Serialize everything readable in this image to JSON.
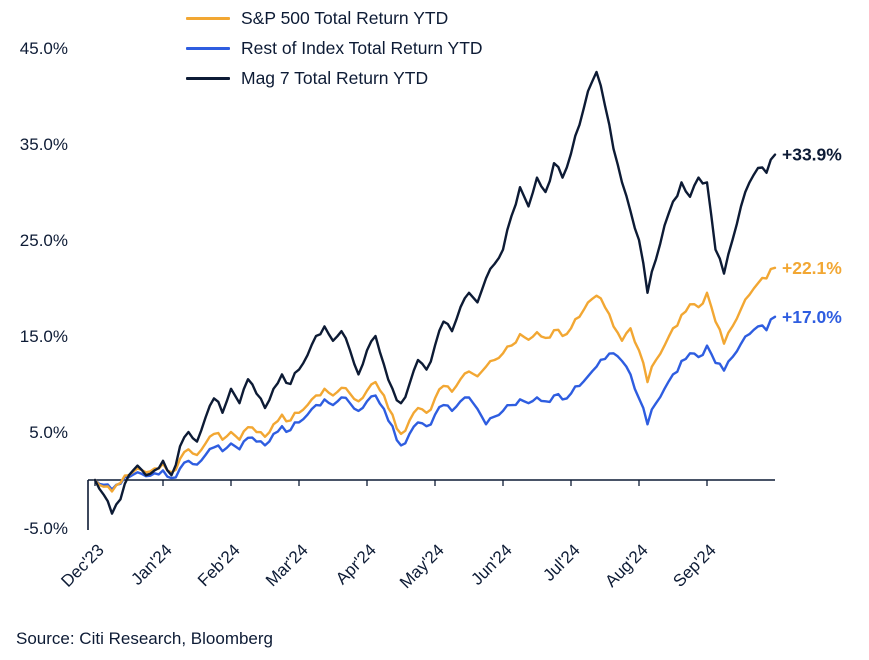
{
  "chart_data": {
    "type": "line",
    "title": "",
    "source": "Source: Citi Research, Bloomberg",
    "x_tick_labels": [
      "Dec'23",
      "Jan'24",
      "Feb'24",
      "Mar'24",
      "Apr'24",
      "May'24",
      "Jun'24",
      "Jul'24",
      "Aug'24",
      "Sep'24"
    ],
    "y_tick_values": [
      45,
      35,
      25,
      15,
      5,
      -5
    ],
    "y_tick_labels": [
      "45.0%",
      "35.0%",
      "25.0%",
      "15.0%",
      "5.0%",
      "-5.0%"
    ],
    "ylim": [
      -5,
      45
    ],
    "grid": false,
    "legend_position": "top-left",
    "axis_color": "#0D1B35",
    "x_unit": "values sampled ~every 3-4 days from Dec'23 through end Sep'24, evenly spaced",
    "series": [
      {
        "key": "sp500",
        "name": "S&P 500 Total Return YTD",
        "color": "#F2A733",
        "end_label": "+22.1%",
        "end_value": 22.1,
        "values": [
          0,
          -0.7,
          -1.2,
          -0.3,
          0.5,
          1.2,
          0.8,
          1.2,
          1.7,
          0.8,
          2.2,
          3.2,
          2.6,
          3.8,
          4.8,
          4.2,
          5,
          4.2,
          5.5,
          5,
          4.5,
          5.8,
          6.8,
          6.2,
          7,
          7.8,
          8.8,
          9.5,
          8.8,
          9.6,
          9,
          8.2,
          9.3,
          10.2,
          8.8,
          6.8,
          4.8,
          6.2,
          7.5,
          7,
          8.5,
          9.8,
          9.2,
          10.5,
          11.3,
          10.8,
          11.8,
          12.5,
          13.2,
          14,
          15.2,
          14.6,
          15.4,
          14.8,
          15.6,
          15,
          15.8,
          17,
          18.5,
          19.2,
          18,
          16,
          14.5,
          15.8,
          13.5,
          10.2,
          12.5,
          14,
          15.8,
          17.2,
          18.3,
          18,
          19.5,
          16.5,
          14.2,
          16,
          17.8,
          19.3,
          20.5,
          21,
          22.1
        ]
      },
      {
        "key": "rest-of-index",
        "name": "Rest of Index Total Return YTD",
        "color": "#2E5DE0",
        "end_label": "+17.0%",
        "end_value": 17.0,
        "values": [
          0,
          -0.5,
          -1,
          -0.4,
          0.3,
          0.8,
          0.4,
          0.7,
          1,
          0.2,
          1.2,
          2,
          1.6,
          2.6,
          3.4,
          3,
          3.8,
          3.2,
          4.4,
          4,
          3.6,
          4.8,
          5.6,
          5.2,
          6,
          6.8,
          7.8,
          8.4,
          7.8,
          8.6,
          8,
          7.2,
          8.2,
          8.8,
          7.4,
          5.6,
          3.6,
          4.8,
          6,
          5.6,
          6.8,
          7.8,
          7.2,
          8.2,
          8.6,
          7.4,
          5.8,
          6.6,
          7.2,
          7.8,
          8.4,
          8,
          8.6,
          8.2,
          8.8,
          8.4,
          9,
          9.8,
          10.8,
          11.8,
          12.6,
          13.2,
          12.4,
          11,
          8.5,
          5.8,
          8,
          9.5,
          11,
          12.4,
          13.2,
          12.8,
          14,
          12.2,
          11.4,
          12.8,
          14.2,
          15.2,
          16,
          15.6,
          17
        ]
      },
      {
        "key": "mag7",
        "name": "Mag 7 Total Return YTD",
        "color": "#0D1B35",
        "end_label": "+33.9%",
        "end_value": 33.9,
        "values": [
          0,
          -1.5,
          -3.5,
          -2,
          0.5,
          1.5,
          0.5,
          1,
          2,
          0.5,
          3.5,
          5,
          4,
          6.5,
          8.5,
          7,
          9.5,
          8,
          10.5,
          9,
          7.5,
          9.5,
          11,
          10,
          11.5,
          13,
          15,
          16,
          14.5,
          15.5,
          13.5,
          11,
          13.5,
          15,
          12,
          9.5,
          8,
          10,
          12.5,
          11.5,
          14,
          16.5,
          15.5,
          18,
          19.5,
          18.5,
          21,
          22.5,
          24,
          27.5,
          30.5,
          28.5,
          31.5,
          30,
          33,
          31.5,
          34,
          37,
          40.5,
          42.5,
          39,
          34.5,
          31,
          28,
          25,
          19.5,
          23,
          26.5,
          29,
          31,
          29.5,
          31.5,
          31,
          24,
          21.5,
          25,
          28.5,
          31,
          32.5,
          32,
          33.9
        ]
      }
    ]
  }
}
